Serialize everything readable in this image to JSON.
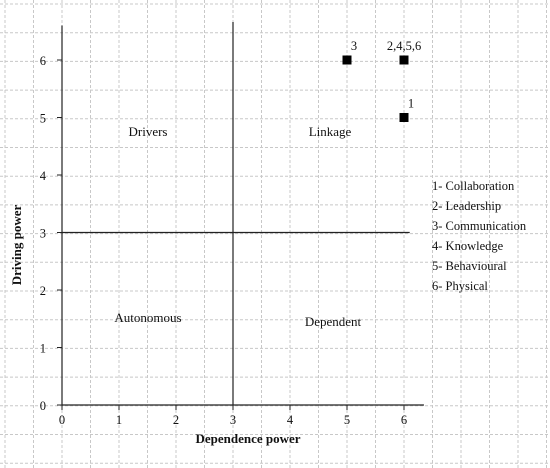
{
  "chart_data": {
    "type": "scatter",
    "xlabel": "Dependence power",
    "ylabel": "Driving power",
    "xlim": [
      0,
      6.35
    ],
    "ylim": [
      0,
      6.6
    ],
    "x_ticks": [
      "0",
      "1",
      "2",
      "3",
      "4",
      "5",
      "6"
    ],
    "y_ticks": [
      "0",
      "1",
      "2",
      "3",
      "4",
      "5",
      "6"
    ],
    "grid": true,
    "divider_x": 3,
    "divider_y": 3,
    "points": [
      {
        "label": "3",
        "x": 5,
        "y": 6
      },
      {
        "label": "2,4,5,6",
        "x": 6,
        "y": 6
      },
      {
        "label": "1",
        "x": 6,
        "y": 5
      }
    ],
    "quadrants": {
      "top_left": "Drivers",
      "top_right": "Linkage",
      "bottom_left": "Autonomous",
      "bottom_right": "Dependent"
    },
    "legend_placement": "right",
    "legend": [
      "1- Collaboration",
      "2- Leadership",
      "3- Communication",
      "4- Knowledge",
      "5- Behavioural",
      "6- Physical"
    ],
    "colors": {
      "grid": "#c8c8c8",
      "axis": "#222222",
      "marker": "#000000"
    }
  }
}
